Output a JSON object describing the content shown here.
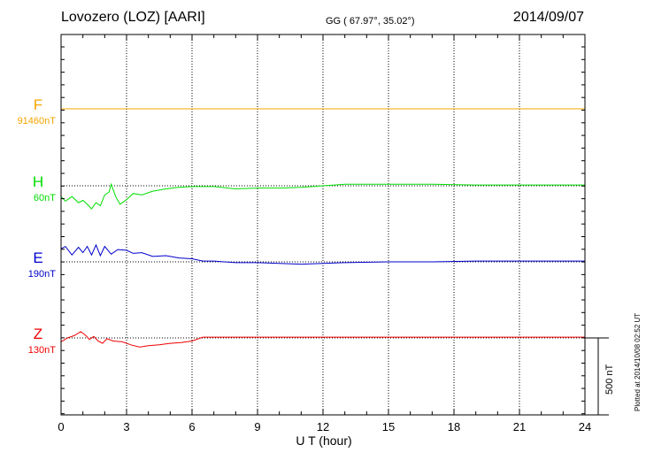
{
  "header": {
    "station": "Lovozero (LOZ)  [AARI]",
    "coords": "GG ( 67.97°,  35.02°)",
    "date": "2014/09/07"
  },
  "plotted_note": "Plotted at 2014/10/08 02:52 UT",
  "scale_bar_label": "500 nT",
  "chart_data": {
    "type": "line",
    "title": "Lovozero (LOZ) [AARI] 2014/09/07",
    "xlabel": "U T (hour)",
    "ylabel": "",
    "xlim": [
      0,
      24
    ],
    "xticks": [
      0,
      3,
      6,
      9,
      12,
      15,
      18,
      21,
      24
    ],
    "scale_bar_nT": 500,
    "grid": "dotted, every 3 hours",
    "series": [
      {
        "name": "F",
        "label": "91460nT",
        "color": "#f5a400",
        "baseline_nT": 91460,
        "x": [
          0,
          6,
          12,
          18,
          24
        ],
        "values": [
          0,
          0,
          0,
          0,
          0
        ]
      },
      {
        "name": "H",
        "label": "60nT",
        "color": "#00dd00",
        "baseline_nT": 60,
        "x": [
          0,
          0.2,
          0.5,
          0.8,
          1.0,
          1.2,
          1.4,
          1.6,
          1.8,
          2.0,
          2.2,
          2.3,
          2.5,
          2.7,
          3.0,
          3.3,
          3.7,
          4.2,
          4.8,
          5.4,
          6.0,
          7.0,
          8.0,
          9.0,
          10.0,
          11.0,
          12.0,
          13.0,
          15.0,
          17.0,
          19.0,
          21.0,
          24.0
        ],
        "values": [
          -70,
          -100,
          -70,
          -110,
          -95,
          -120,
          -150,
          -110,
          -130,
          -60,
          -40,
          10,
          -70,
          -120,
          -90,
          -50,
          -60,
          -35,
          -20,
          -10,
          -5,
          -5,
          -20,
          -15,
          -15,
          -10,
          0,
          10,
          10,
          10,
          5,
          5,
          5
        ]
      },
      {
        "name": "E",
        "label": "190nT",
        "color": "#0000cc",
        "baseline_nT": 190,
        "x": [
          0,
          0.2,
          0.5,
          0.8,
          1.0,
          1.2,
          1.4,
          1.6,
          1.8,
          2.0,
          2.3,
          2.6,
          3.0,
          3.3,
          3.7,
          4.2,
          4.8,
          5.4,
          6.0,
          6.5,
          7.0,
          8.0,
          9.0,
          10.0,
          11.0,
          12.0,
          13.0,
          15.0,
          17.0,
          19.0,
          21.0,
          24.0
        ],
        "values": [
          85,
          100,
          45,
          95,
          60,
          100,
          45,
          110,
          40,
          100,
          50,
          80,
          75,
          55,
          60,
          35,
          40,
          25,
          20,
          5,
          5,
          -5,
          -5,
          -10,
          -15,
          -10,
          -5,
          0,
          0,
          5,
          5,
          5
        ]
      },
      {
        "name": "Z",
        "label": "130nT",
        "color": "#ee0000",
        "baseline_nT": 130,
        "x": [
          0,
          0.3,
          0.6,
          0.9,
          1.1,
          1.3,
          1.5,
          1.7,
          1.9,
          2.1,
          2.4,
          2.8,
          3.2,
          3.6,
          4.0,
          4.5,
          5.0,
          5.5,
          6.0,
          6.5,
          7.0,
          8.0,
          10.0,
          12.0,
          14.0,
          16.0,
          18.0,
          20.0,
          22.0,
          24.0
        ],
        "values": [
          -25,
          0,
          15,
          40,
          20,
          -10,
          10,
          -20,
          -35,
          -5,
          -20,
          -25,
          -45,
          -60,
          -50,
          -45,
          -35,
          -30,
          -20,
          5,
          5,
          5,
          5,
          5,
          5,
          5,
          5,
          5,
          5,
          5
        ]
      }
    ]
  }
}
